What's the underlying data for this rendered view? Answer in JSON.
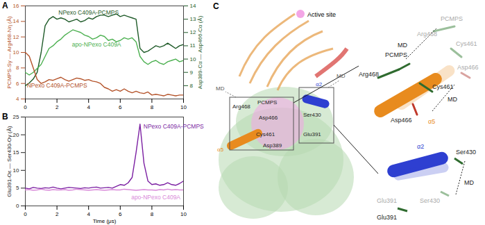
{
  "chart_data": [
    {
      "type": "line",
      "title": "A",
      "x": [
        0,
        0.25,
        0.5,
        0.75,
        1,
        1.25,
        1.5,
        1.75,
        2,
        2.25,
        2.5,
        2.75,
        3,
        3.25,
        3.5,
        3.75,
        4,
        4.25,
        4.5,
        4.75,
        5,
        5.25,
        5.5,
        5.75,
        6,
        6.25,
        6.5,
        6.75,
        7,
        7.25,
        7.5,
        7.75,
        8,
        8.25,
        8.5,
        8.75,
        9,
        9.25,
        9.5,
        9.75,
        10
      ],
      "xlim": [
        0,
        10
      ],
      "xticks": [
        0,
        2,
        4,
        6,
        8,
        10
      ],
      "y_label": "PCMPS-Sγ — Arg468-Nη (Å)",
      "ylim": [
        4,
        16
      ],
      "yticks": [
        4,
        6,
        8,
        10,
        12,
        14,
        16
      ],
      "y2_label": "Asp389-Cα — Asp466-Cα (Å)",
      "y2lim": [
        7,
        14
      ],
      "y2ticks": [
        8,
        9,
        10,
        11,
        12,
        13,
        14
      ],
      "series": [
        {
          "name": "NPexo C409A-PCMPS",
          "color": "#1e5a28",
          "axis": "y2",
          "values": [
            8.0,
            8.2,
            8.5,
            9.0,
            10.5,
            12.5,
            13.0,
            13.2,
            13.0,
            13.1,
            13.0,
            12.8,
            12.9,
            13.0,
            12.8,
            12.9,
            13.1,
            13.0,
            13.2,
            13.3,
            13.3,
            13.2,
            13.3,
            13.4,
            13.2,
            13.3,
            13.2,
            13.1,
            13.0,
            10.8,
            10.5,
            10.6,
            10.8,
            11.0,
            10.9,
            11.0,
            11.2,
            11.0,
            10.8,
            11.0,
            11.1
          ]
        },
        {
          "name": "apo-NPexo C409A",
          "color": "#4cb050",
          "axis": "y2",
          "values": [
            9.0,
            8.8,
            9.0,
            9.3,
            9.6,
            10.2,
            10.8,
            11.0,
            11.3,
            11.5,
            11.8,
            12.0,
            12.2,
            12.1,
            12.0,
            11.8,
            11.7,
            11.5,
            11.6,
            11.8,
            11.7,
            11.4,
            11.5,
            11.3,
            11.4,
            11.6,
            11.5,
            11.6,
            11.3,
            10.2,
            9.8,
            9.6,
            9.8,
            9.9,
            9.7,
            9.6,
            9.8,
            9.9,
            10.0,
            9.8,
            9.9
          ]
        },
        {
          "name": "NPexo C409A-PCMPS",
          "color": "#b4532a",
          "axis": "y",
          "values": [
            10.0,
            9.5,
            8.0,
            6.5,
            6.0,
            6.2,
            6.5,
            6.4,
            6.6,
            6.8,
            6.5,
            6.3,
            6.5,
            6.7,
            6.6,
            6.4,
            6.5,
            6.3,
            6.2,
            6.0,
            5.5,
            5.3,
            5.0,
            5.2,
            5.0,
            5.3,
            5.0,
            4.8,
            5.0,
            4.8,
            4.7,
            4.9,
            4.5,
            4.6,
            4.5,
            4.4,
            4.6,
            4.5,
            4.4,
            4.5,
            4.5
          ]
        }
      ]
    },
    {
      "type": "line",
      "title": "B",
      "x": [
        0,
        0.25,
        0.5,
        0.75,
        1,
        1.25,
        1.5,
        1.75,
        2,
        2.25,
        2.5,
        2.75,
        3,
        3.25,
        3.5,
        3.75,
        4,
        4.25,
        4.5,
        4.75,
        5,
        5.25,
        5.5,
        5.75,
        6,
        6.25,
        6.5,
        6.75,
        7,
        7.25,
        7.5,
        7.75,
        8,
        8.25,
        8.5,
        8.75,
        9,
        9.25,
        9.5,
        9.75,
        10
      ],
      "x_label": "Time (μs)",
      "xlim": [
        0,
        10
      ],
      "xticks": [
        0,
        2,
        4,
        6,
        8,
        10
      ],
      "y_label": "Glu391-Oε — Ser430-Oγ (Å)",
      "ylim": [
        0,
        25
      ],
      "yticks": [
        0,
        5,
        10,
        15,
        20,
        25
      ],
      "series": [
        {
          "name": "NPexo C409A-PCMPS",
          "color": "#7b1fa2",
          "values": [
            5.0,
            4.8,
            5.2,
            5.0,
            4.9,
            5.1,
            5.0,
            5.3,
            5.0,
            4.8,
            5.0,
            5.2,
            5.1,
            5.0,
            4.9,
            5.1,
            5.0,
            5.2,
            5.3,
            5.0,
            5.1,
            5.2,
            5.0,
            5.5,
            6.0,
            5.8,
            6.5,
            8.0,
            15.0,
            23.0,
            12.0,
            7.0,
            6.0,
            6.2,
            5.8,
            6.0,
            6.5,
            6.0,
            5.8,
            6.3,
            7.0
          ]
        },
        {
          "name": "apo-NPexo C409A",
          "color": "#d98ad9",
          "values": [
            4.5,
            4.6,
            4.4,
            4.5,
            4.7,
            4.5,
            4.4,
            4.6,
            4.5,
            4.5,
            4.6,
            4.4,
            4.5,
            4.7,
            4.6,
            4.5,
            4.4,
            4.5,
            4.6,
            4.5,
            4.4,
            4.5,
            4.6,
            4.5,
            4.5,
            4.7,
            4.6,
            4.5,
            4.4,
            4.5,
            4.6,
            4.5,
            4.5,
            4.4,
            4.6,
            4.5,
            4.7,
            4.5,
            4.6,
            4.5,
            4.5
          ]
        }
      ]
    }
  ],
  "diagram": {
    "label": "C",
    "active_site": "Active site",
    "main": [
      "MD",
      "Arg468",
      "PCMPS",
      "Asp466",
      "Cys461",
      "α5",
      "Asp389",
      "α2",
      "Ser430",
      "Glu391",
      "MD"
    ],
    "inset_alpha5": [
      "PCMPS",
      "Arg468",
      "Cys461",
      "Asp466",
      "PCMPS",
      "Arg468",
      "Cys461",
      "Asp466",
      "α5",
      "MD",
      "MD"
    ],
    "inset_alpha2": [
      "α2",
      "Ser430",
      "Ser430",
      "Glu391",
      "Glu391",
      "MD"
    ]
  }
}
